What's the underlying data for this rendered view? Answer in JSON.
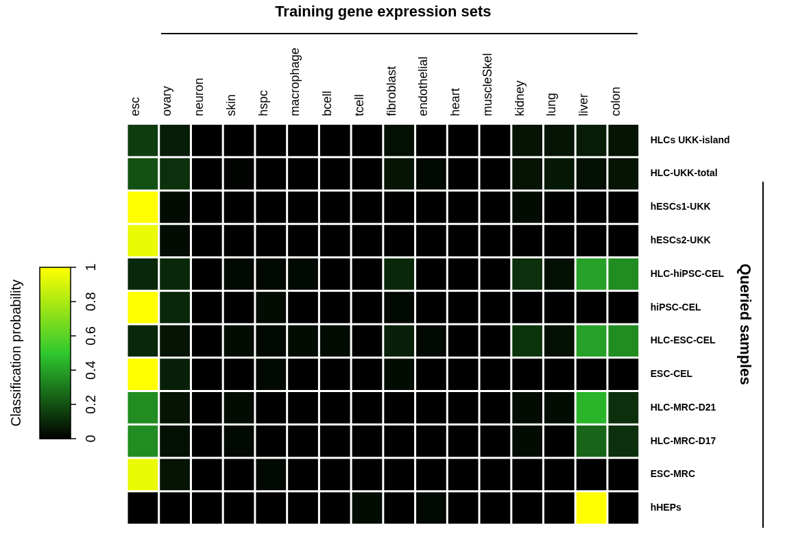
{
  "chart_data": {
    "type": "heatmap",
    "xlabel": "Training gene expression sets",
    "ylabel": "Queried samples",
    "clabel": "Classification probability",
    "categories": [
      "esc",
      "ovary",
      "neuron",
      "skin",
      "hspc",
      "macrophage",
      "bcell",
      "tcell",
      "fibroblast",
      "endothelial",
      "heart",
      "muscleSkel",
      "kidney",
      "lung",
      "liver",
      "colon"
    ],
    "y_categories": [
      "HLCs UKK-island",
      "HLC-UKK-total",
      "hESCs1-UKK",
      "hESCs2-UKK",
      "HLC-hiPSC-CEL",
      "hiPSC-CEL",
      "HLC-ESC-CEL",
      "ESC-CEL",
      "HLC-MRC-D21",
      "HLC-MRC-D17",
      "ESC-MRC",
      "hHEPs"
    ],
    "cells": [
      [
        0.15,
        0.07,
        0,
        0,
        0,
        0,
        0,
        0,
        0.04,
        0,
        0,
        0,
        0.05,
        0.05,
        0.07,
        0.05
      ],
      [
        0.2,
        0.12,
        0,
        0.01,
        0,
        0,
        0,
        0,
        0.05,
        0.02,
        0,
        0,
        0.05,
        0.06,
        0.04,
        0.05
      ],
      [
        1,
        0.03,
        0,
        0,
        0,
        0,
        0,
        0,
        0,
        0,
        0,
        0,
        0.03,
        0,
        0,
        0
      ],
      [
        0.95,
        0.03,
        0,
        0,
        0,
        0,
        0,
        0,
        0,
        0,
        0,
        0,
        0,
        0,
        0,
        0
      ],
      [
        0.1,
        0.1,
        0,
        0.02,
        0.02,
        0.02,
        0,
        0,
        0.1,
        0,
        0,
        0,
        0.12,
        0.04,
        0.4,
        0.35
      ],
      [
        1,
        0.1,
        0,
        0,
        0.03,
        0,
        0,
        0,
        0.02,
        0,
        0,
        0,
        0,
        0,
        0,
        0
      ],
      [
        0.1,
        0.05,
        0,
        0.03,
        0.02,
        0.03,
        0.03,
        0,
        0.08,
        0.02,
        0,
        0,
        0.13,
        0.04,
        0.4,
        0.35
      ],
      [
        1,
        0.08,
        0,
        0,
        0.02,
        0,
        0,
        0,
        0.03,
        0,
        0,
        0,
        0,
        0,
        0,
        0
      ],
      [
        0.35,
        0.05,
        0,
        0.03,
        0,
        0,
        0,
        0,
        0,
        0,
        0,
        0,
        0.03,
        0.03,
        0.45,
        0.12
      ],
      [
        0.35,
        0.04,
        0,
        0.02,
        0,
        0,
        0,
        0,
        0,
        0,
        0,
        0,
        0.03,
        0,
        0.25,
        0.12
      ],
      [
        0.95,
        0.05,
        0,
        0,
        0.02,
        0,
        0,
        0,
        0,
        0,
        0,
        0,
        0,
        0,
        0,
        0
      ],
      [
        0,
        0,
        0,
        0,
        0,
        0,
        0,
        0.03,
        0,
        0.02,
        0,
        0,
        0,
        0,
        1,
        0
      ]
    ],
    "clim": [
      0,
      1
    ],
    "cticks": [
      0,
      0.2,
      0.4,
      0.6,
      0.8,
      1
    ]
  }
}
